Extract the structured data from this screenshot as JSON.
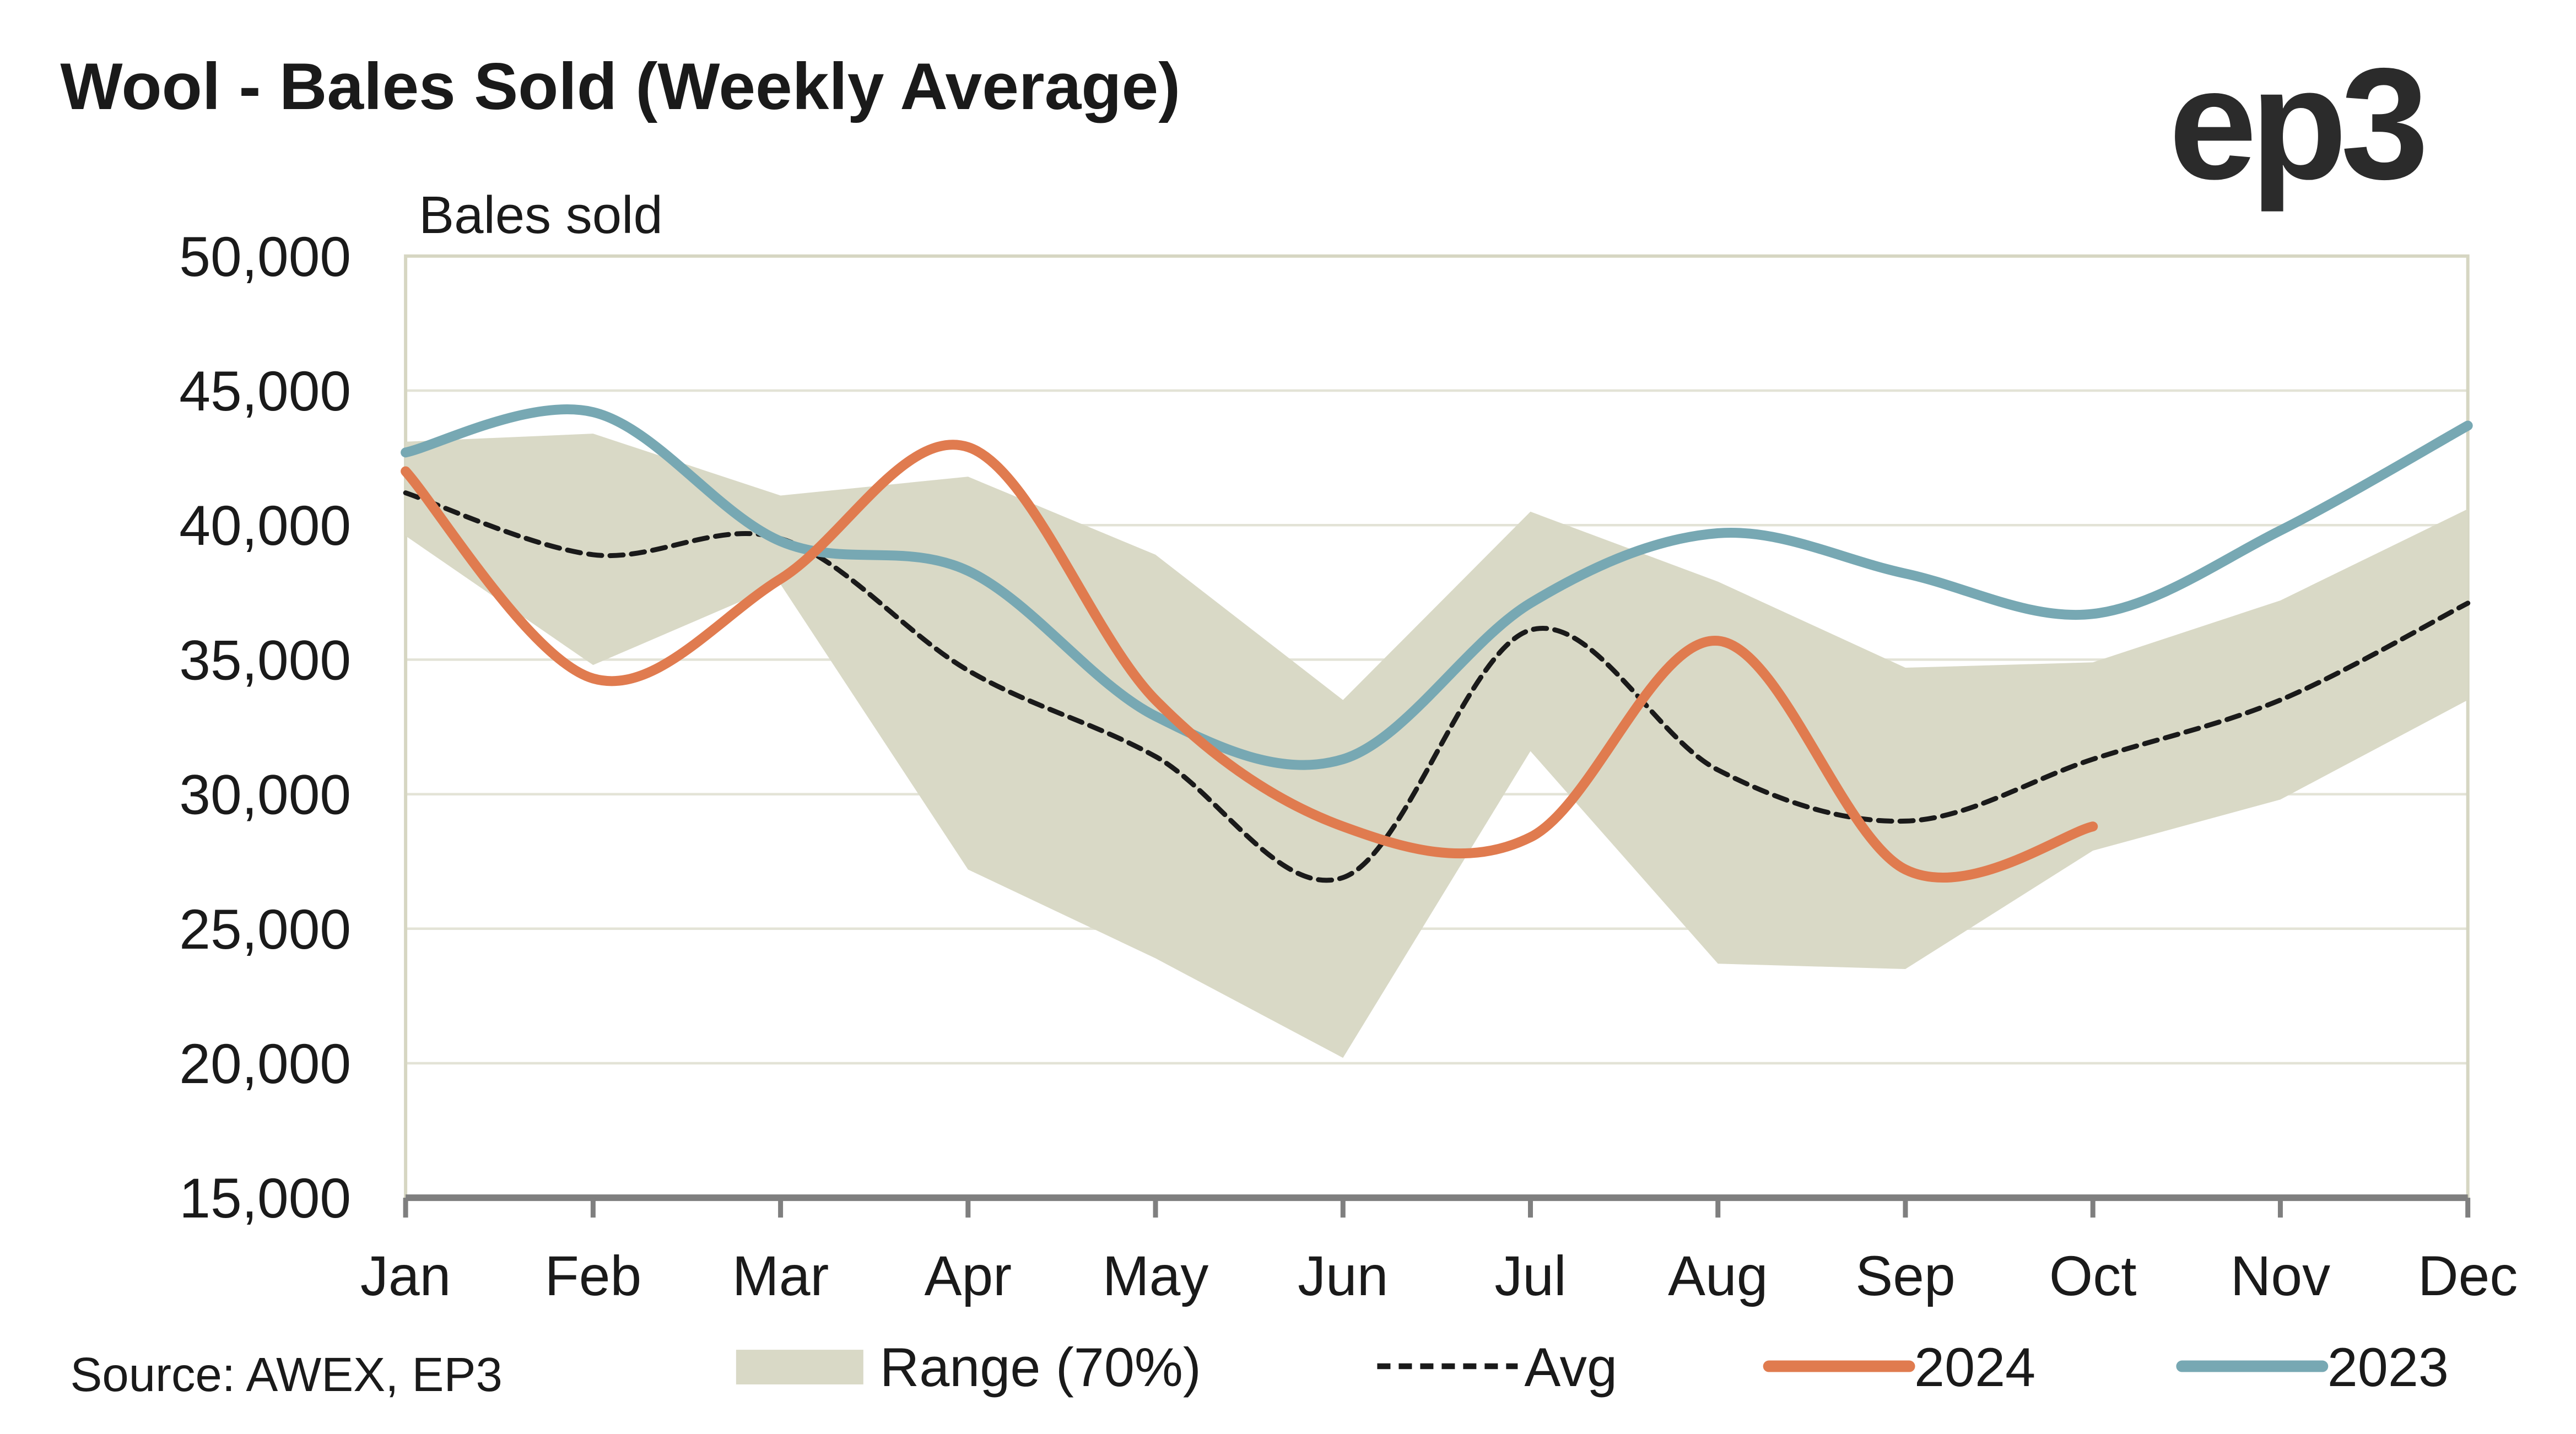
{
  "chart_data": {
    "type": "line",
    "title": "Wool - Bales Sold (Weekly Average)",
    "ylabel": "Bales sold",
    "xlabel": "",
    "ylim": [
      15000,
      50000
    ],
    "yticks": [
      "15,000",
      "20,000",
      "25,000",
      "30,000",
      "35,000",
      "40,000",
      "45,000",
      "50,000"
    ],
    "ytick_values": [
      15000,
      20000,
      25000,
      30000,
      35000,
      40000,
      45000,
      50000
    ],
    "categories": [
      "Jan",
      "Feb",
      "Mar",
      "Apr",
      "May",
      "Jun",
      "Jul",
      "Aug",
      "Sep",
      "Oct",
      "Nov",
      "Dec"
    ],
    "grid": "horizontal",
    "legend_placement": "bottom",
    "range": {
      "name": "Range (70%)",
      "color": "#d9d9c6",
      "upper": [
        43100,
        43400,
        41100,
        41800,
        38900,
        33500,
        40500,
        37900,
        34700,
        34900,
        37200,
        40600
      ],
      "lower": [
        39600,
        34800,
        37800,
        27200,
        23900,
        20200,
        31600,
        23700,
        23500,
        27900,
        29800,
        33500
      ]
    },
    "series": [
      {
        "name": "Avg",
        "color": "#1a1a1a",
        "style": "dashed",
        "values": [
          41200,
          38900,
          39500,
          34600,
          31400,
          26900,
          36100,
          30900,
          29000,
          31300,
          33500,
          37100
        ]
      },
      {
        "name": "2024",
        "color": "#e07b4f",
        "style": "solid",
        "values": [
          42000,
          34300,
          38000,
          42900,
          33500,
          28800,
          28400,
          35700,
          27200,
          28800,
          null,
          null
        ]
      },
      {
        "name": "2023",
        "color": "#77a8b3",
        "style": "solid",
        "values": [
          42700,
          44200,
          39400,
          38300,
          32900,
          31300,
          37100,
          39700,
          38200,
          36700,
          39800,
          43700
        ]
      }
    ],
    "source": "Source: AWEX, EP3"
  },
  "logo": "ep3"
}
